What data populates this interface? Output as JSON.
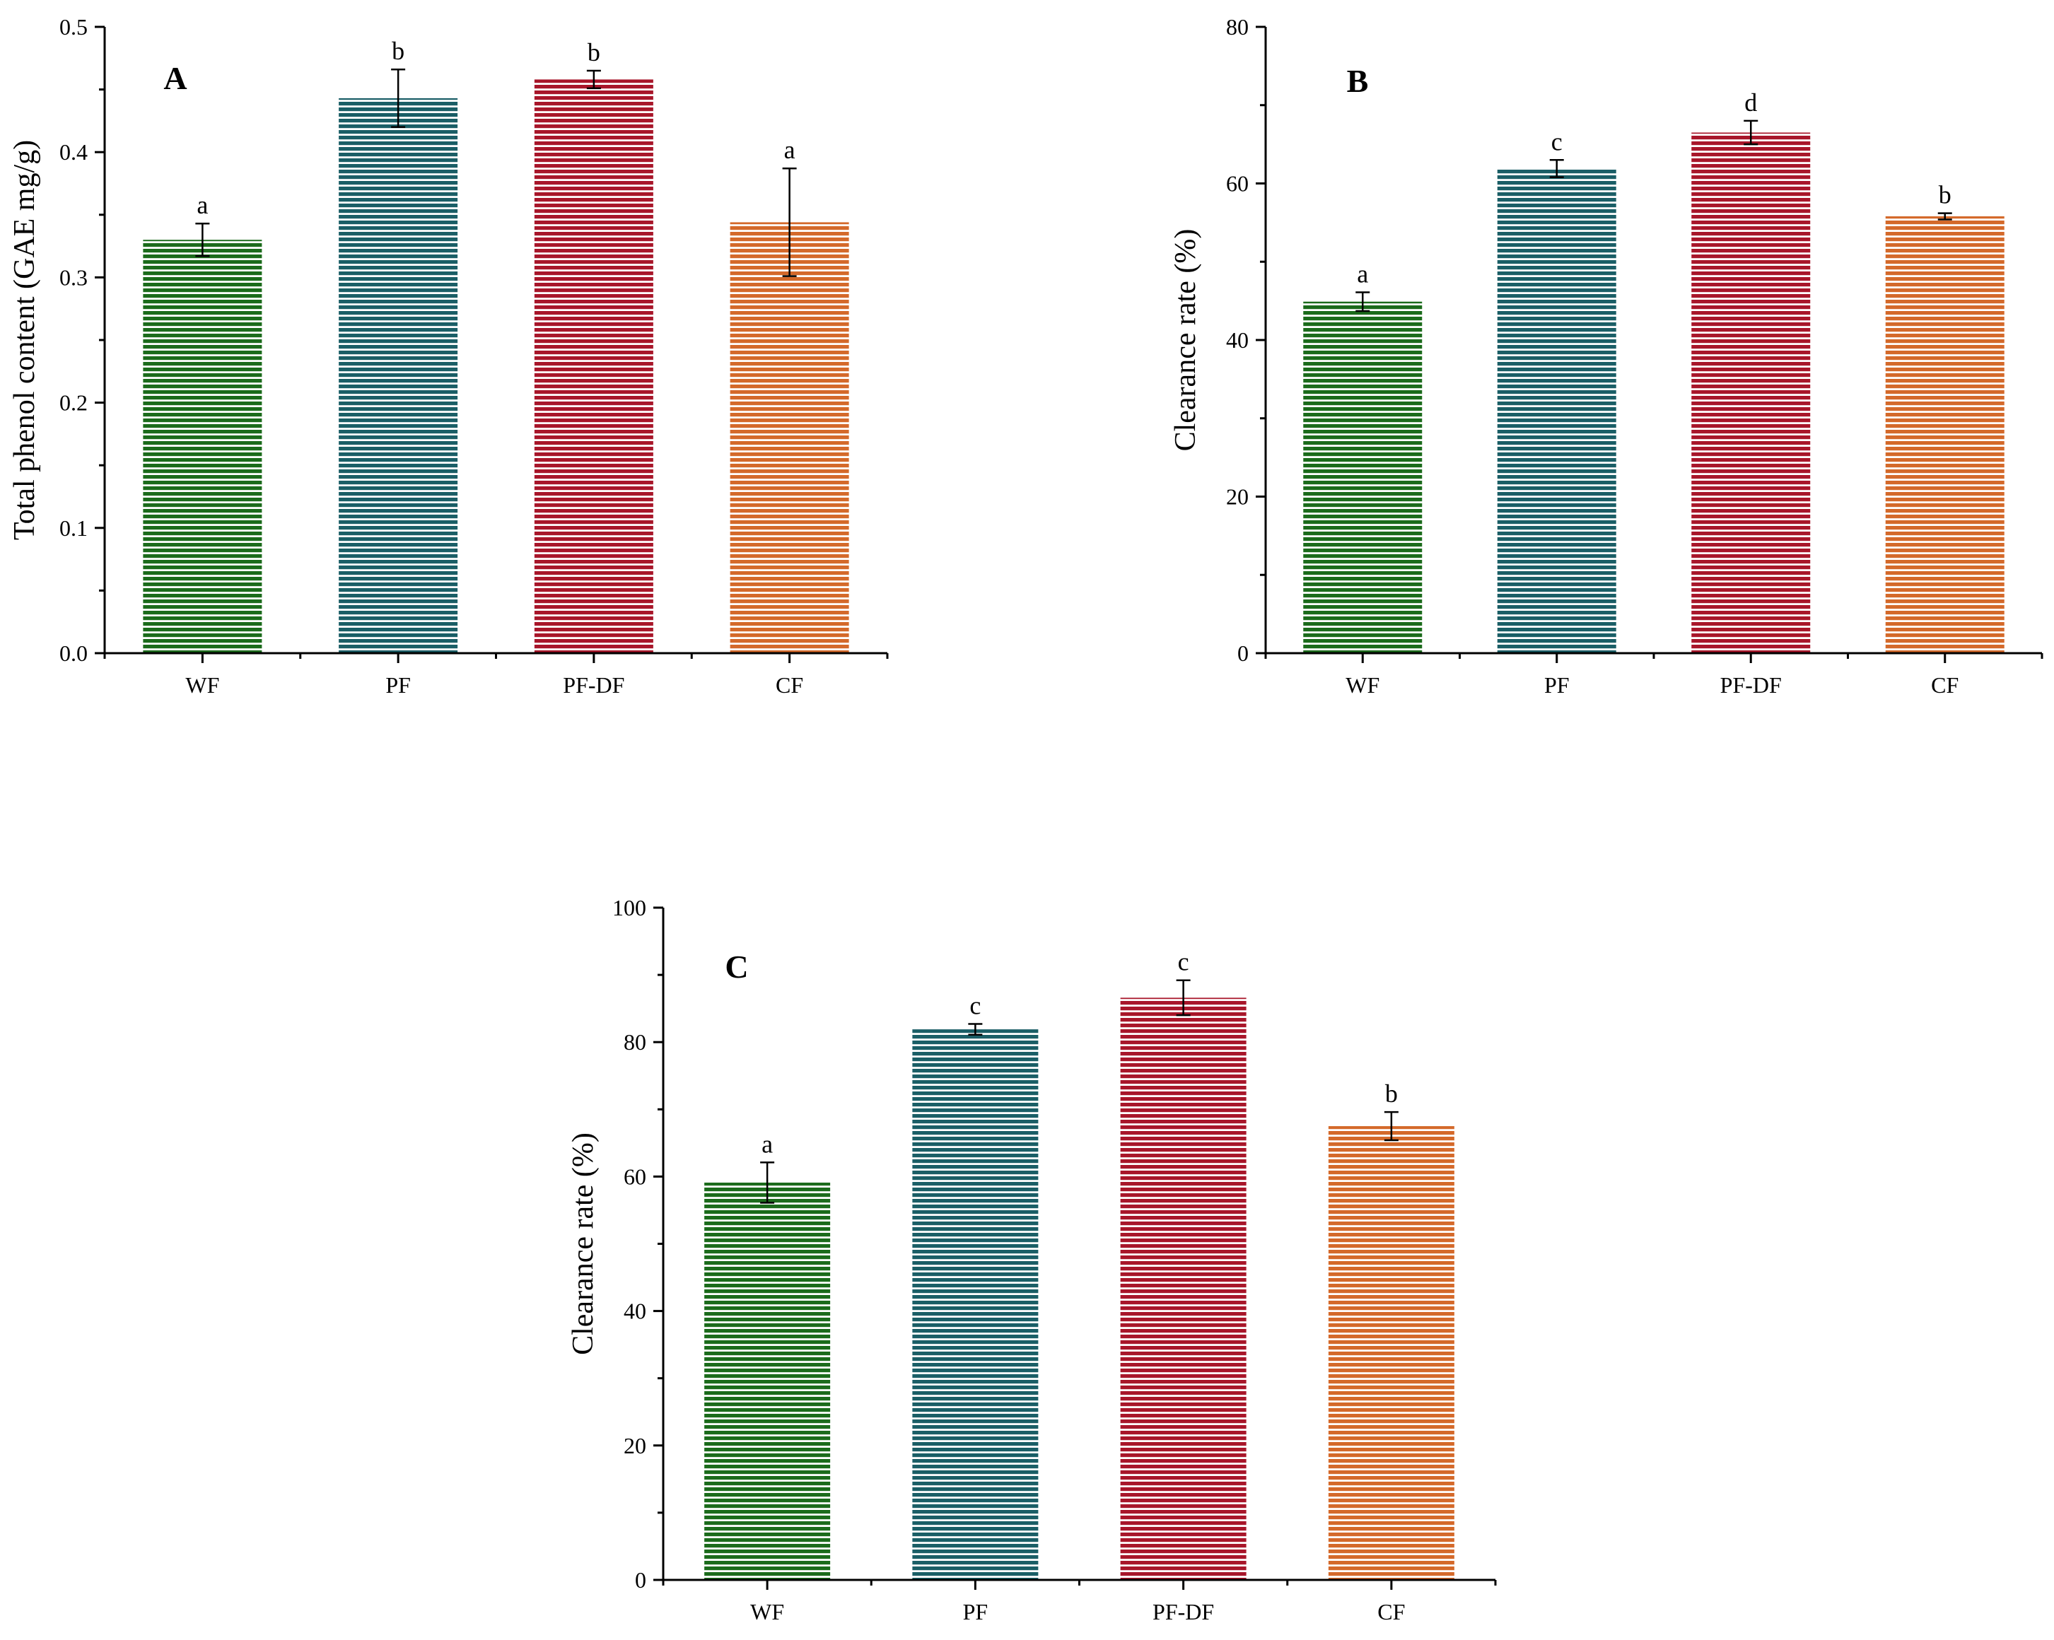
{
  "colors": {
    "WF": "#1b6b1b",
    "PF": "#1a5e66",
    "PF-DF": "#a8162a",
    "CF": "#d4692a"
  },
  "chart_data": [
    {
      "type": "bar",
      "panel": "A",
      "title": "",
      "xlabel": "",
      "ylabel": "Total phenol content (GAE mg/g)",
      "ylim": [
        0,
        0.5
      ],
      "yticks": [
        0.0,
        0.1,
        0.2,
        0.3,
        0.4,
        0.5
      ],
      "ytick_labels": [
        "0.0",
        "0.1",
        "0.2",
        "0.3",
        "0.4",
        "0.5"
      ],
      "categories": [
        "WF",
        "PF",
        "PF-DF",
        "CF"
      ],
      "values": [
        0.33,
        0.443,
        0.458,
        0.344
      ],
      "errors": [
        0.013,
        0.023,
        0.007,
        0.043
      ],
      "significance": [
        "a",
        "b",
        "b",
        "a"
      ]
    },
    {
      "type": "bar",
      "panel": "B",
      "title": "",
      "xlabel": "",
      "ylabel": "Clearance rate (%)",
      "ylim": [
        0,
        80
      ],
      "yticks": [
        0,
        20,
        40,
        60,
        80
      ],
      "ytick_labels": [
        "0",
        "20",
        "40",
        "60",
        "80"
      ],
      "categories": [
        "WF",
        "PF",
        "PF-DF",
        "CF"
      ],
      "values": [
        44.9,
        61.9,
        66.5,
        55.8
      ],
      "errors": [
        1.2,
        1.1,
        1.5,
        0.4
      ],
      "significance": [
        "a",
        "c",
        "d",
        "b"
      ]
    },
    {
      "type": "bar",
      "panel": "C",
      "title": "",
      "xlabel": "",
      "ylabel": "Clearance rate (%)",
      "ylim": [
        0,
        100
      ],
      "yticks": [
        0,
        20,
        40,
        60,
        80,
        100
      ],
      "ytick_labels": [
        "0",
        "20",
        "40",
        "60",
        "80",
        "100"
      ],
      "categories": [
        "WF",
        "PF",
        "PF-DF",
        "CF"
      ],
      "values": [
        59.1,
        81.9,
        86.6,
        67.5
      ],
      "errors": [
        3.0,
        0.8,
        2.6,
        2.1
      ],
      "significance": [
        "a",
        "c",
        "c",
        "b"
      ]
    }
  ]
}
